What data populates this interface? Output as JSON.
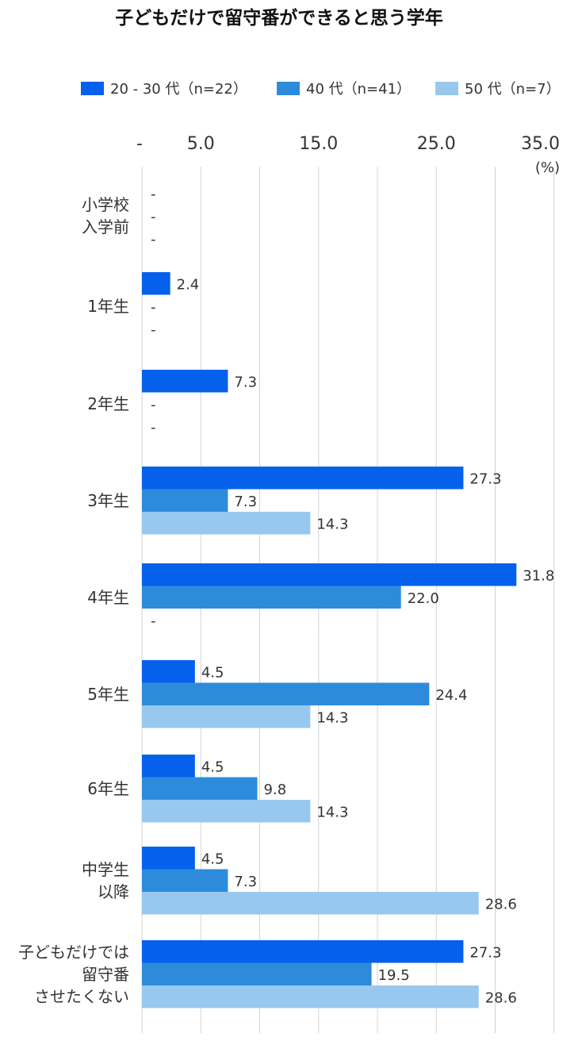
{
  "chart_data": {
    "type": "bar",
    "orientation": "horizontal",
    "title": "子どもだけで留守番ができると思う学年",
    "unit_label": "(%)",
    "xlim": [
      0,
      35
    ],
    "xticks": [
      0,
      5,
      15,
      25,
      35
    ],
    "xtick_labels": [
      "-",
      "5.0",
      "15.0",
      "25.0",
      "35.0"
    ],
    "grid": true,
    "legend_position": "top",
    "categories": [
      [
        "小学校",
        "入学前"
      ],
      [
        "1年生"
      ],
      [
        "2年生"
      ],
      [
        "3年生"
      ],
      [
        "4年生"
      ],
      [
        "5年生"
      ],
      [
        "6年生"
      ],
      [
        "中学生",
        "以降"
      ],
      [
        "子どもだけでは",
        "留守番",
        "させたくない"
      ]
    ],
    "series": [
      {
        "name": "20 - 30 代（n=22）",
        "color": "#0560EC",
        "values": [
          0,
          2.4,
          7.3,
          27.3,
          31.8,
          4.5,
          4.5,
          4.5,
          27.3
        ],
        "labels": [
          "-",
          "2.4",
          "7.3",
          "27.3",
          "31.8",
          "4.5",
          "4.5",
          "4.5",
          "27.3"
        ]
      },
      {
        "name": "40 代（n=41）",
        "color": "#2E8BDC",
        "values": [
          0,
          0,
          0,
          7.3,
          22.0,
          24.4,
          9.8,
          7.3,
          19.5
        ],
        "labels": [
          "-",
          "-",
          "-",
          "7.3",
          "22.0",
          "24.4",
          "9.8",
          "7.3",
          "19.5"
        ]
      },
      {
        "name": "50 代（n=7）",
        "color": "#99C8EE",
        "values": [
          0,
          0,
          0,
          14.3,
          0,
          14.3,
          14.3,
          28.6,
          28.6
        ],
        "labels": [
          "-",
          "-",
          "-",
          "14.3",
          "-",
          "14.3",
          "14.3",
          "28.6",
          "28.6"
        ]
      }
    ]
  }
}
